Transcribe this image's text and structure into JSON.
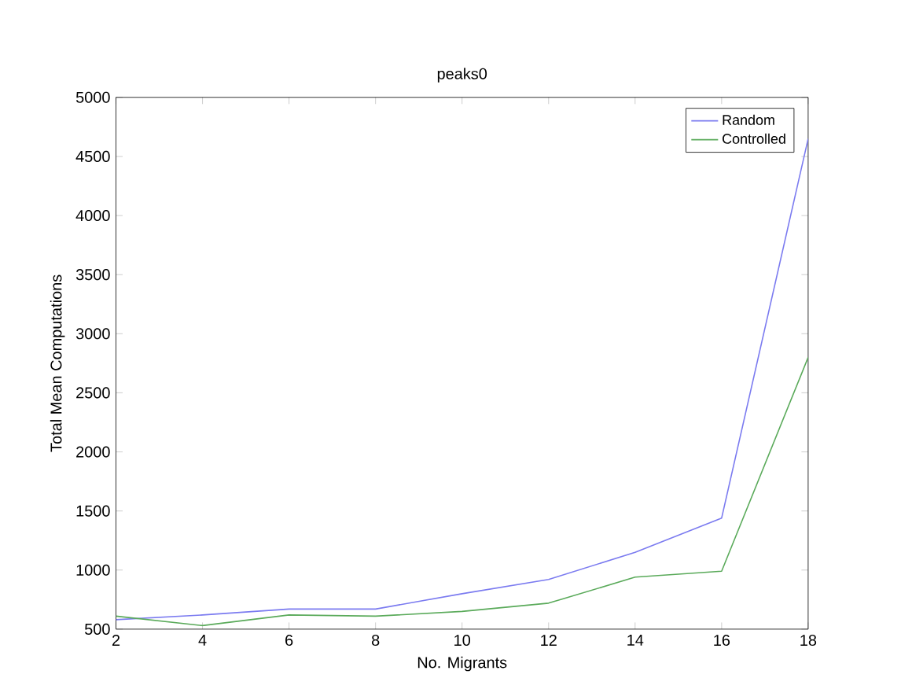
{
  "chart_data": {
    "type": "line",
    "title": "peaks0",
    "xlabel": "No. Migrants",
    "ylabel": "Total Mean Computations",
    "x": [
      2,
      4,
      6,
      8,
      10,
      12,
      14,
      16,
      18
    ],
    "series": [
      {
        "name": "Random",
        "color": "#7b7bf0",
        "values": [
          580,
          620,
          670,
          670,
          800,
          920,
          1150,
          1440,
          4650
        ]
      },
      {
        "name": "Controlled",
        "color": "#5aaa5a",
        "values": [
          610,
          530,
          620,
          610,
          650,
          720,
          940,
          990,
          2800
        ]
      }
    ],
    "xlim": [
      2,
      18
    ],
    "xticks": [
      2,
      4,
      6,
      8,
      10,
      12,
      14,
      16,
      18
    ],
    "ylim": [
      500,
      5000
    ],
    "yticks": [
      500,
      1000,
      1500,
      2000,
      2500,
      3000,
      3500,
      4000,
      4500,
      5000
    ],
    "legend": "top right",
    "grid": false
  }
}
